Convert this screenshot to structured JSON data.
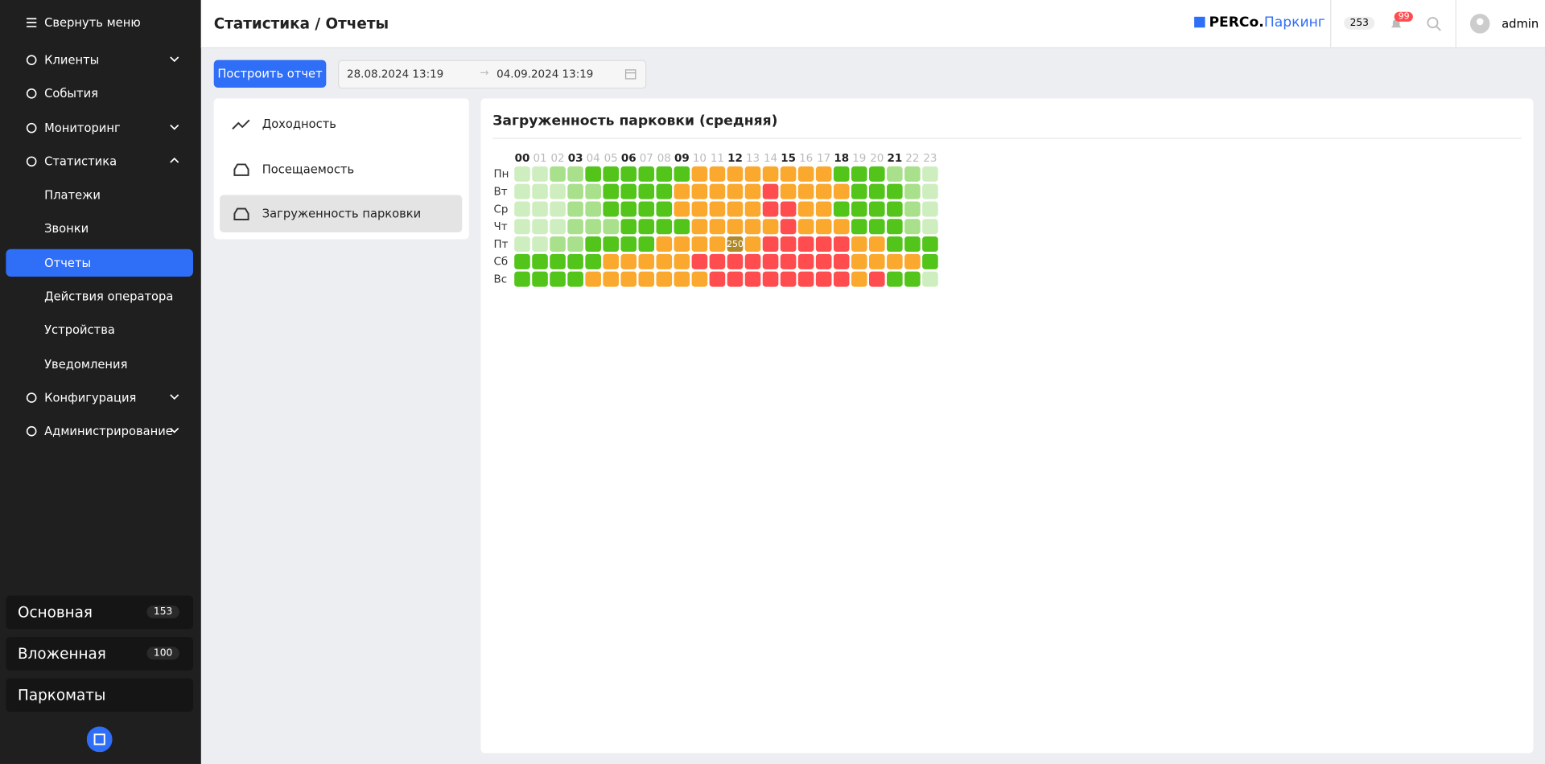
{
  "sidebar": {
    "collapse": "Свернуть меню",
    "menu": [
      {
        "label": "Клиенты",
        "chevron": "down"
      },
      {
        "label": "События"
      },
      {
        "label": "Мониторинг",
        "chevron": "down"
      },
      {
        "label": "Статистика",
        "chevron": "up"
      },
      {
        "label": "Платежи",
        "sub": true
      },
      {
        "label": "Звонки",
        "sub": true
      },
      {
        "label": "Отчеты",
        "sub": true,
        "active": true
      },
      {
        "label": "Действия оператора",
        "sub": true
      },
      {
        "label": "Устройства",
        "sub": true
      },
      {
        "label": "Уведомления",
        "sub": true
      },
      {
        "label": "Конфигурация",
        "chevron": "down"
      },
      {
        "label": "Администрирование",
        "chevron": "down"
      }
    ],
    "zones": [
      {
        "label": "Основная",
        "count": 153
      },
      {
        "label": "Вложенная",
        "count": 100
      },
      {
        "label": "Паркоматы"
      }
    ]
  },
  "header": {
    "title": "Статистика / Отчеты",
    "logo_bold": "PERCo.",
    "logo_text": "Паркинг",
    "counter": 253,
    "notifications": 99,
    "user": "admin"
  },
  "toolbar": {
    "button": "Построить отчет",
    "date_from": "28.08.2024 13:19",
    "date_to": "04.09.2024 13:19"
  },
  "reports": [
    {
      "label": "Доходность"
    },
    {
      "label": "Посещаемость"
    },
    {
      "label": "Загруженность парковки",
      "active": true
    }
  ],
  "heatmap": {
    "title": "Загруженность парковки (средняя)",
    "hours": [
      "00",
      "01",
      "02",
      "03",
      "04",
      "05",
      "06",
      "07",
      "08",
      "09",
      "10",
      "11",
      "12",
      "13",
      "14",
      "15",
      "16",
      "17",
      "18",
      "19",
      "20",
      "21",
      "22",
      "23"
    ],
    "days": [
      "Пн",
      "Вт",
      "Ср",
      "Чт",
      "Пт",
      "Сб",
      "Вс"
    ],
    "palette": [
      "#cfeec0",
      "#a9e08c",
      "#52c41a",
      "#faa92e",
      "#ff4d4f"
    ],
    "levels": [
      [
        0,
        0,
        1,
        1,
        2,
        2,
        2,
        2,
        2,
        2,
        3,
        3,
        3,
        3,
        3,
        3,
        3,
        3,
        2,
        2,
        2,
        1,
        1,
        0
      ],
      [
        0,
        0,
        0,
        1,
        1,
        2,
        2,
        2,
        2,
        3,
        3,
        3,
        3,
        3,
        4,
        3,
        3,
        3,
        3,
        2,
        2,
        2,
        1,
        0
      ],
      [
        0,
        0,
        0,
        1,
        1,
        2,
        2,
        2,
        2,
        3,
        3,
        3,
        3,
        3,
        4,
        4,
        3,
        3,
        2,
        2,
        2,
        2,
        1,
        0
      ],
      [
        0,
        0,
        0,
        1,
        1,
        1,
        2,
        2,
        2,
        2,
        3,
        3,
        3,
        3,
        3,
        4,
        3,
        3,
        3,
        2,
        2,
        2,
        1,
        0
      ],
      [
        0,
        0,
        1,
        1,
        2,
        2,
        2,
        2,
        3,
        3,
        3,
        3,
        3,
        3,
        4,
        4,
        4,
        4,
        4,
        3,
        3,
        2,
        2,
        2
      ],
      [
        2,
        2,
        2,
        2,
        2,
        3,
        3,
        3,
        3,
        3,
        4,
        4,
        4,
        4,
        4,
        4,
        4,
        4,
        4,
        3,
        3,
        3,
        3,
        2
      ],
      [
        2,
        2,
        2,
        2,
        3,
        3,
        3,
        3,
        3,
        3,
        3,
        4,
        4,
        4,
        4,
        4,
        4,
        4,
        4,
        3,
        4,
        2,
        2,
        0
      ]
    ],
    "hover": {
      "day": 4,
      "hour": 12,
      "value": 250
    }
  }
}
